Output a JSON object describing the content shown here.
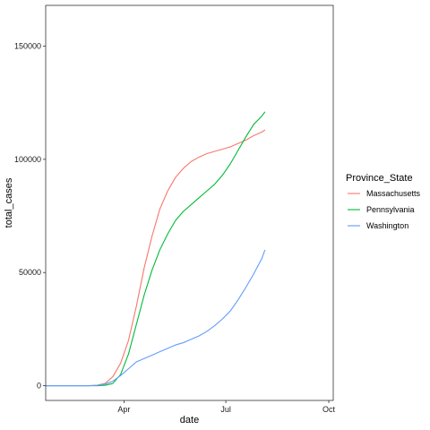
{
  "chart_data": {
    "type": "line",
    "xlabel": "date",
    "ylabel": "total_cases",
    "x_ticks": [
      "Apr",
      "Jul",
      "Oct"
    ],
    "y_ticks": [
      0,
      50000,
      100000,
      150000
    ],
    "y_tick_labels": [
      "0",
      "50000",
      "100000",
      "150000"
    ],
    "xlim": [
      "2020-01-22",
      "2020-10-05"
    ],
    "ylim": [
      -6500,
      168000
    ],
    "grid": false,
    "legend_title": "Province_State",
    "legend_position": "right",
    "series": [
      {
        "name": "Massachusetts",
        "color": "#F8766D",
        "x": [
          "2020-01-22",
          "2020-03-01",
          "2020-03-08",
          "2020-03-15",
          "2020-03-22",
          "2020-03-29",
          "2020-04-05",
          "2020-04-12",
          "2020-04-19",
          "2020-04-26",
          "2020-05-03",
          "2020-05-10",
          "2020-05-17",
          "2020-05-24",
          "2020-05-31",
          "2020-06-07",
          "2020-06-14",
          "2020-06-21",
          "2020-06-28",
          "2020-07-05",
          "2020-07-12",
          "2020-07-19",
          "2020-07-26",
          "2020-08-02",
          "2020-08-05"
        ],
        "y": [
          0,
          0,
          200,
          1000,
          4000,
          10000,
          20000,
          35000,
          52000,
          66000,
          78000,
          86000,
          92000,
          96000,
          99000,
          101000,
          102500,
          103500,
          104500,
          105500,
          107000,
          108500,
          110500,
          112000,
          113000
        ]
      },
      {
        "name": "Pennsylvania",
        "color": "#00BA38",
        "x": [
          "2020-01-22",
          "2020-03-01",
          "2020-03-08",
          "2020-03-15",
          "2020-03-22",
          "2020-03-29",
          "2020-04-05",
          "2020-04-12",
          "2020-04-19",
          "2020-04-26",
          "2020-05-03",
          "2020-05-10",
          "2020-05-17",
          "2020-05-24",
          "2020-05-31",
          "2020-06-07",
          "2020-06-14",
          "2020-06-21",
          "2020-06-28",
          "2020-07-05",
          "2020-07-12",
          "2020-07-19",
          "2020-07-26",
          "2020-08-02",
          "2020-08-05"
        ],
        "y": [
          0,
          0,
          0,
          200,
          1000,
          5000,
          14000,
          27000,
          40000,
          51000,
          60000,
          67000,
          73000,
          77000,
          80000,
          83000,
          86000,
          89000,
          93000,
          98000,
          104000,
          110000,
          115500,
          119000,
          121000
        ]
      },
      {
        "name": "Washington",
        "color": "#619CFF",
        "x": [
          "2020-01-22",
          "2020-03-01",
          "2020-03-08",
          "2020-03-15",
          "2020-03-22",
          "2020-03-29",
          "2020-04-05",
          "2020-04-12",
          "2020-04-19",
          "2020-04-26",
          "2020-05-03",
          "2020-05-10",
          "2020-05-17",
          "2020-05-24",
          "2020-05-31",
          "2020-06-07",
          "2020-06-14",
          "2020-06-21",
          "2020-06-28",
          "2020-07-05",
          "2020-07-12",
          "2020-07-19",
          "2020-07-26",
          "2020-08-02",
          "2020-08-05"
        ],
        "y": [
          0,
          0,
          150,
          700,
          2000,
          4500,
          7500,
          10500,
          12000,
          13500,
          15000,
          16500,
          18000,
          19000,
          20500,
          22000,
          24000,
          26500,
          29500,
          33000,
          38000,
          43500,
          49500,
          56000,
          60000
        ]
      }
    ]
  }
}
